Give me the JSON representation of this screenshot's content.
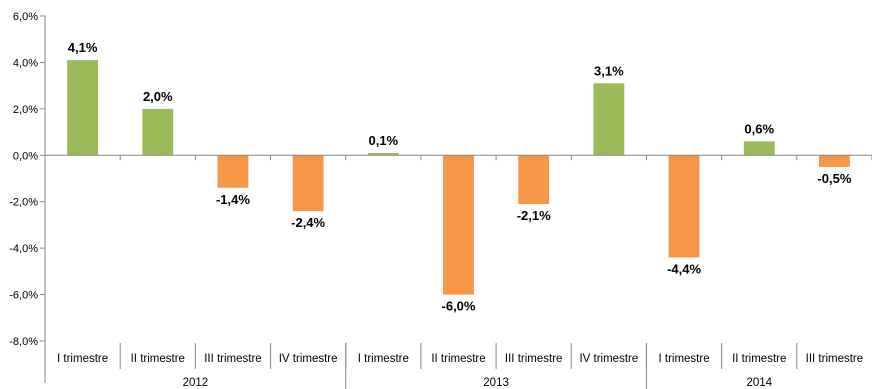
{
  "chart_data": {
    "type": "bar",
    "title": "",
    "xlabel": "",
    "ylabel": "",
    "ylim": [
      -8,
      6
    ],
    "yticks": [
      6,
      4,
      2,
      0,
      -2,
      -4,
      -6,
      -8
    ],
    "ytick_labels": [
      "6,0%",
      "4,0%",
      "2,0%",
      "0,0%",
      "-2,0%",
      "-4,0%",
      "-6,0%",
      "-8,0%"
    ],
    "categories": [
      "I trimestre",
      "II trimestre",
      "III trimestre",
      "IV trimestre",
      "I trimestre",
      "II trimestre",
      "III trimestre",
      "IV trimestre",
      "I trimestre",
      "II trimestre",
      "III trimestre"
    ],
    "groups": [
      {
        "label": "2012",
        "count": 4
      },
      {
        "label": "2013",
        "count": 4
      },
      {
        "label": "2014",
        "count": 3
      }
    ],
    "values": [
      4.1,
      2.0,
      -1.4,
      -2.4,
      0.1,
      -6.0,
      -2.1,
      3.1,
      -4.4,
      0.6,
      -0.5
    ],
    "data_labels": [
      "4,1%",
      "2,0%",
      "-1,4%",
      "-2,4%",
      "0,1%",
      "-6,0%",
      "-2,1%",
      "3,1%",
      "-4,4%",
      "0,6%",
      "-0,5%"
    ],
    "grid": false,
    "legend": "none",
    "colors": {
      "positive": "#9bbb59",
      "negative": "#f79646"
    }
  }
}
